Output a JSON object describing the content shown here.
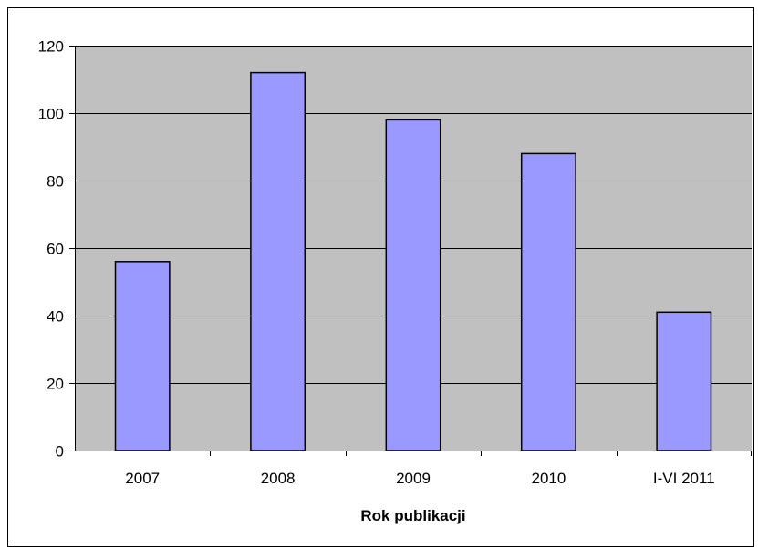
{
  "chart_data": {
    "type": "bar",
    "categories": [
      "2007",
      "2008",
      "2009",
      "2010",
      "I-VI 2011"
    ],
    "values": [
      56,
      112,
      98,
      88,
      41
    ],
    "title": "",
    "xlabel": "Rok publikacji",
    "ylabel": "",
    "ylim": [
      0,
      120
    ],
    "yticks": [
      0,
      20,
      40,
      60,
      80,
      100,
      120
    ],
    "grid": true,
    "legend": "none",
    "colors": {
      "bar_fill": "#9999ff",
      "bar_stroke": "#000000",
      "plot_background": "#c0c0c0",
      "gridline": "#000000"
    }
  }
}
